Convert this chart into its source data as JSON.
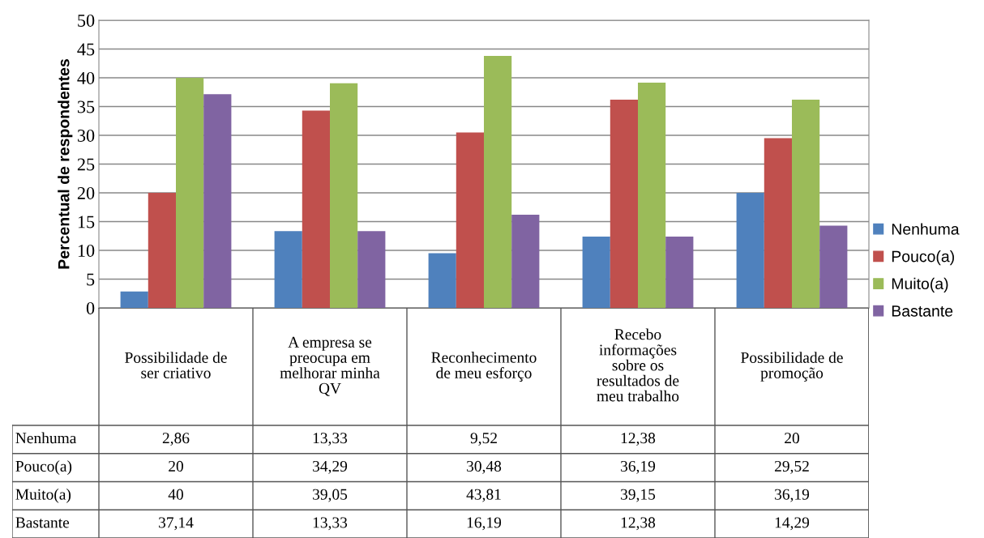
{
  "chart_data": {
    "type": "bar",
    "ylabel": "Percentual de respondentes",
    "categories": [
      "Possibilidade de\nser criativo",
      "A empresa se\npreocupa em\nmelhorar minha\nQV",
      "Reconhecimento\nde meu esforço",
      "Recebo\ninformações\nsobre os\nresultados de\nmeu trabalho",
      "Possibilidade de\npromoção"
    ],
    "series": [
      {
        "name": "Nenhuma",
        "color": "#4f81bd",
        "values": [
          2.86,
          13.33,
          9.52,
          12.38,
          20
        ],
        "value_labels": [
          "2,86",
          "13,33",
          "9,52",
          "12,38",
          "20"
        ]
      },
      {
        "name": "Pouco(a)",
        "color": "#c0504d",
        "values": [
          20,
          34.29,
          30.48,
          36.19,
          29.52
        ],
        "value_labels": [
          "20",
          "34,29",
          "30,48",
          "36,19",
          "29,52"
        ]
      },
      {
        "name": "Muito(a)",
        "color": "#9bbb59",
        "values": [
          40,
          39.05,
          43.81,
          39.15,
          36.19
        ],
        "value_labels": [
          "40",
          "39,05",
          "43,81",
          "39,15",
          "36,19"
        ]
      },
      {
        "name": "Bastante",
        "color": "#8064a2",
        "values": [
          37.14,
          13.33,
          16.19,
          12.38,
          14.29
        ],
        "value_labels": [
          "37,14",
          "13,33",
          "16,19",
          "12,38",
          "14,29"
        ]
      }
    ],
    "ylim": [
      0,
      50
    ],
    "yticks": [
      0,
      5,
      10,
      15,
      20,
      25,
      30,
      35,
      40,
      45,
      50
    ],
    "grid": "y",
    "legend": "right"
  }
}
